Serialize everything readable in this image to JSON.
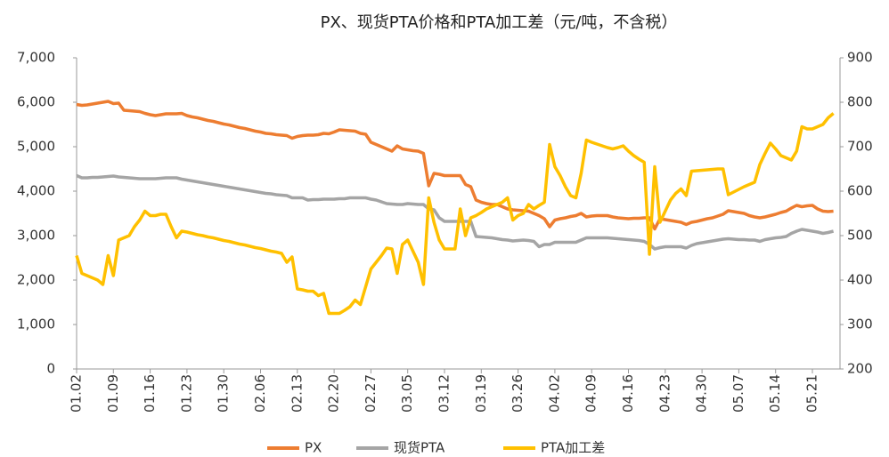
{
  "chart_data": {
    "type": "line",
    "title": "PX、现货PTA价格和PTA加工差（元/吨，不含税）",
    "categories": [
      "01.02",
      null,
      null,
      null,
      null,
      null,
      null,
      "01.09",
      null,
      null,
      null,
      null,
      null,
      null,
      "01.16",
      null,
      null,
      null,
      null,
      null,
      null,
      "01.23",
      null,
      null,
      null,
      null,
      null,
      null,
      "01.30",
      null,
      null,
      null,
      null,
      null,
      null,
      "02.06",
      null,
      null,
      null,
      null,
      null,
      null,
      "02.13",
      null,
      null,
      null,
      null,
      null,
      null,
      "02.20",
      null,
      null,
      null,
      null,
      null,
      null,
      "02.27",
      null,
      null,
      null,
      null,
      null,
      null,
      "03.05",
      null,
      null,
      null,
      null,
      null,
      null,
      "03.12",
      null,
      null,
      null,
      null,
      null,
      null,
      "03.19",
      null,
      null,
      null,
      null,
      null,
      null,
      "03.26",
      null,
      null,
      null,
      null,
      null,
      null,
      "04.02",
      null,
      null,
      null,
      null,
      null,
      null,
      "04.09",
      null,
      null,
      null,
      null,
      null,
      null,
      "04.16",
      null,
      null,
      null,
      null,
      null,
      null,
      "04.23",
      null,
      null,
      null,
      null,
      null,
      null,
      "04.30",
      null,
      null,
      null,
      null,
      null,
      null,
      "05.07",
      null,
      null,
      null,
      null,
      null,
      null,
      "05.14",
      null,
      null,
      null,
      null,
      null,
      null,
      "05.21",
      null,
      null,
      null,
      null
    ],
    "series": [
      {
        "name": "PX",
        "color": "#ED7D31",
        "values": [
          5950,
          5930,
          5940,
          5960,
          5980,
          6000,
          6020,
          5970,
          5980,
          5820,
          5810,
          5800,
          5790,
          5750,
          5720,
          5700,
          5720,
          5740,
          5740,
          5740,
          5750,
          5700,
          5670,
          5650,
          5620,
          5590,
          5570,
          5540,
          5510,
          5490,
          5460,
          5430,
          5410,
          5380,
          5350,
          5330,
          5300,
          5290,
          5270,
          5260,
          5250,
          5190,
          5230,
          5250,
          5260,
          5260,
          5270,
          5300,
          5290,
          5330,
          5380,
          5370,
          5360,
          5350,
          5300,
          5280,
          5100,
          5050,
          5000,
          4950,
          4900,
          5020,
          4950,
          4930,
          4910,
          4900,
          4850,
          4120,
          4400,
          4380,
          4350,
          4350,
          4350,
          4350,
          4150,
          4100,
          3800,
          3750,
          3720,
          3700,
          3700,
          3650,
          3600,
          3580,
          3570,
          3560,
          3550,
          3500,
          3450,
          3380,
          3200,
          3350,
          3380,
          3400,
          3430,
          3450,
          3500,
          3420,
          3440,
          3450,
          3450,
          3450,
          3420,
          3400,
          3390,
          3380,
          3390,
          3390,
          3400,
          3400,
          3150,
          3380,
          3360,
          3340,
          3320,
          3300,
          3250,
          3300,
          3320,
          3350,
          3380,
          3400,
          3440,
          3480,
          3560,
          3540,
          3520,
          3500,
          3450,
          3420,
          3400,
          3420,
          3450,
          3480,
          3520,
          3550,
          3620,
          3680,
          3650,
          3670,
          3680,
          3600,
          3550,
          3540,
          3550
        ]
      },
      {
        "name": "现货PTA",
        "color": "#A5A5A5",
        "values": [
          4350,
          4300,
          4300,
          4310,
          4310,
          4320,
          4330,
          4340,
          4320,
          4310,
          4300,
          4290,
          4280,
          4280,
          4280,
          4280,
          4290,
          4300,
          4300,
          4300,
          4270,
          4250,
          4230,
          4210,
          4190,
          4170,
          4150,
          4130,
          4110,
          4090,
          4070,
          4050,
          4030,
          4010,
          3990,
          3970,
          3950,
          3940,
          3920,
          3910,
          3900,
          3850,
          3850,
          3850,
          3800,
          3810,
          3810,
          3820,
          3820,
          3820,
          3830,
          3830,
          3850,
          3850,
          3850,
          3850,
          3820,
          3800,
          3760,
          3720,
          3710,
          3700,
          3700,
          3720,
          3710,
          3700,
          3700,
          3600,
          3580,
          3400,
          3320,
          3320,
          3320,
          3320,
          3320,
          3320,
          2980,
          2970,
          2960,
          2950,
          2930,
          2910,
          2900,
          2880,
          2890,
          2900,
          2890,
          2870,
          2750,
          2800,
          2800,
          2850,
          2850,
          2850,
          2850,
          2850,
          2900,
          2950,
          2950,
          2950,
          2950,
          2950,
          2940,
          2930,
          2920,
          2910,
          2900,
          2890,
          2870,
          2800,
          2700,
          2730,
          2750,
          2750,
          2750,
          2750,
          2720,
          2780,
          2820,
          2840,
          2860,
          2880,
          2900,
          2920,
          2930,
          2920,
          2910,
          2910,
          2900,
          2900,
          2870,
          2910,
          2930,
          2950,
          2960,
          2980,
          3050,
          3100,
          3140,
          3120,
          3100,
          3080,
          3050,
          3070,
          3100
        ]
      },
      {
        "name": "PTA加工差",
        "color": "#FFC000",
        "axis": "y2",
        "values": [
          455,
          415,
          410,
          405,
          400,
          390,
          455,
          410,
          490,
          495,
          500,
          520,
          535,
          555,
          545,
          545,
          548,
          548,
          520,
          495,
          510,
          508,
          505,
          502,
          500,
          497,
          495,
          492,
          489,
          487,
          484,
          481,
          479,
          476,
          473,
          471,
          468,
          465,
          463,
          460,
          440,
          452,
          380,
          378,
          375,
          375,
          365,
          370,
          325,
          325,
          325,
          332,
          340,
          355,
          345,
          385,
          425,
          440,
          455,
          472,
          470,
          415,
          480,
          490,
          465,
          440,
          390,
          585,
          530,
          490,
          470,
          470,
          470,
          560,
          500,
          540,
          545,
          552,
          560,
          565,
          570,
          575,
          585,
          535,
          545,
          550,
          570,
          560,
          568,
          575,
          705,
          655,
          635,
          610,
          590,
          585,
          640,
          715,
          710,
          706,
          702,
          698,
          695,
          698,
          702,
          690,
          680,
          672,
          665,
          458,
          655,
          530,
          555,
          580,
          595,
          605,
          590,
          645,
          646,
          647,
          648,
          649,
          650,
          650,
          592,
          598,
          604,
          610,
          615,
          620,
          660,
          685,
          708,
          695,
          680,
          675,
          670,
          690,
          745,
          740,
          740,
          745,
          750,
          765,
          775
        ]
      }
    ],
    "ylim": [
      0,
      7000
    ],
    "yticks": [
      0,
      {
        "value": 1000,
        "label": "1,000"
      },
      {
        "value": 2000,
        "label": "2,000"
      },
      {
        "value": 3000,
        "label": "3,000"
      },
      {
        "value": 4000,
        "label": "4,000"
      },
      {
        "value": 5000,
        "label": "5,000"
      },
      {
        "value": 6000,
        "label": "6,000"
      },
      {
        "value": 7000,
        "label": "7,000"
      }
    ],
    "y2lim": [
      200,
      900
    ],
    "y2ticks": [
      200,
      300,
      400,
      500,
      600,
      700,
      800,
      900
    ],
    "legend": "bottom"
  }
}
